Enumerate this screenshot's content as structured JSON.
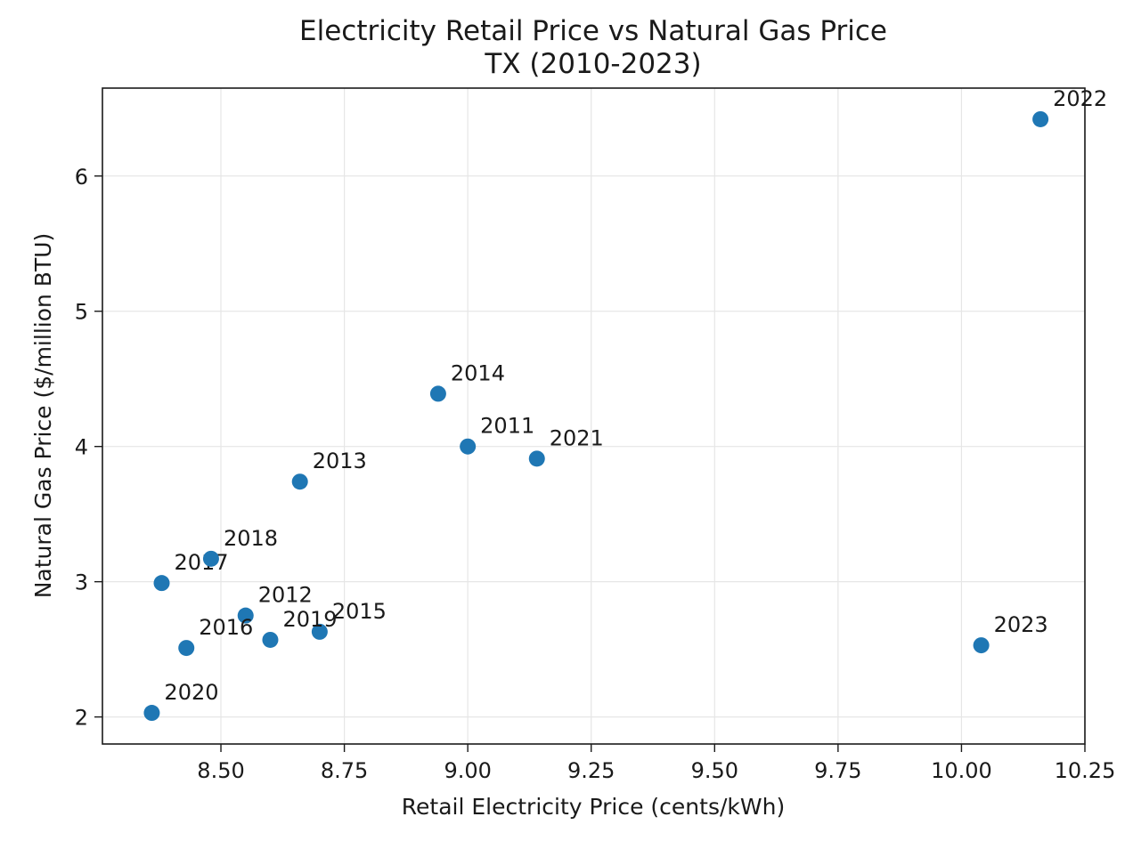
{
  "chart_data": {
    "type": "scatter",
    "title": "Electricity Retail Price vs Natural Gas Price",
    "subtitle": "TX (2010-2023)",
    "xlabel": "Retail Electricity Price (cents/kWh)",
    "ylabel": "Natural Gas Price ($/million BTU)",
    "xlim": [
      8.26,
      10.25
    ],
    "ylim": [
      1.8,
      6.65
    ],
    "xticks": [
      "8.50",
      "8.75",
      "9.00",
      "9.25",
      "9.50",
      "9.75",
      "10.00",
      "10.25"
    ],
    "yticks": [
      "2",
      "3",
      "4",
      "5",
      "6"
    ],
    "grid": true,
    "marker_color": "#1f77b4",
    "points": [
      {
        "label": "2011",
        "x": 9.0,
        "y": 4.0
      },
      {
        "label": "2012",
        "x": 8.55,
        "y": 2.75
      },
      {
        "label": "2013",
        "x": 8.66,
        "y": 3.74
      },
      {
        "label": "2014",
        "x": 8.94,
        "y": 4.39
      },
      {
        "label": "2015",
        "x": 8.7,
        "y": 2.63
      },
      {
        "label": "2016",
        "x": 8.43,
        "y": 2.51
      },
      {
        "label": "2017",
        "x": 8.38,
        "y": 2.99
      },
      {
        "label": "2018",
        "x": 8.48,
        "y": 3.17
      },
      {
        "label": "2019",
        "x": 8.6,
        "y": 2.57
      },
      {
        "label": "2020",
        "x": 8.36,
        "y": 2.03
      },
      {
        "label": "2021",
        "x": 9.14,
        "y": 3.91
      },
      {
        "label": "2022",
        "x": 10.16,
        "y": 6.42
      },
      {
        "label": "2023",
        "x": 10.04,
        "y": 2.53
      }
    ]
  }
}
